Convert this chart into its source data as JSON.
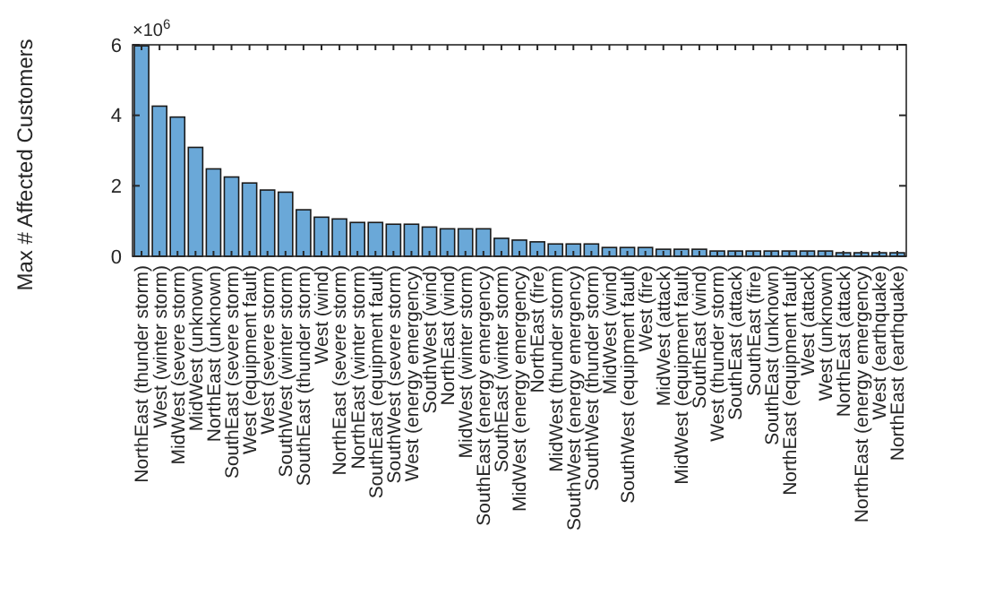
{
  "chart_data": {
    "type": "bar",
    "ylabel": "Max # Affected Customers",
    "annotations": [
      "×10$^{6}$"
    ],
    "categories": [
      "NorthEast (thunder storm)",
      "West (winter storm)",
      "MidWest (severe storm)",
      "MidWest (unknown)",
      "NorthEast (unknown)",
      "SouthEast (severe storm)",
      "West (equipment fault)",
      "West (severe storm)",
      "SouthWest (winter storm)",
      "SouthEast (thunder storm)",
      "West (wind)",
      "NorthEast (severe storm)",
      "NorthEast (winter storm)",
      "SouthEast (equipment fault)",
      "SouthWest (severe storm)",
      "West (energy emergency)",
      "SouthWest (wind)",
      "NorthEast (wind)",
      "MidWest (winter storm)",
      "SouthEast (energy emergency)",
      "SouthEast (winter storm)",
      "MidWest (energy emergency)",
      "NorthEast (fire)",
      "MidWest (thunder storm)",
      "SouthWest (energy emergency)",
      "SouthWest (thunder storm)",
      "MidWest (wind)",
      "SouthWest (equipment fault)",
      "West (fire)",
      "MidWest (attack)",
      "MidWest (equipment fault)",
      "SouthEast (wind)",
      "West (thunder storm)",
      "SouthEast (attack)",
      "SouthEast (fire)",
      "SouthEast (unknown)",
      "NorthEast (equipment fault)",
      "West (attack)",
      "West (unknown)",
      "NorthEast (attack)",
      "NorthEast (energy emergency)",
      "West (earthquake)",
      "NorthEast (earthquake)"
    ],
    "values": [
      5.97,
      4.26,
      3.95,
      3.09,
      2.48,
      2.25,
      2.08,
      1.88,
      1.82,
      1.32,
      1.11,
      1.06,
      0.96,
      0.96,
      0.91,
      0.91,
      0.83,
      0.78,
      0.78,
      0.78,
      0.51,
      0.46,
      0.41,
      0.35,
      0.35,
      0.35,
      0.25,
      0.25,
      0.25,
      0.2,
      0.2,
      0.2,
      0.15,
      0.15,
      0.15,
      0.15,
      0.15,
      0.15,
      0.15,
      0.1,
      0.1,
      0.1,
      0.1
    ],
    "color": "#6aa8d8",
    "ylim": [
      0,
      6
    ],
    "yticks": [
      0,
      2,
      4,
      6
    ],
    "grid": false
  }
}
